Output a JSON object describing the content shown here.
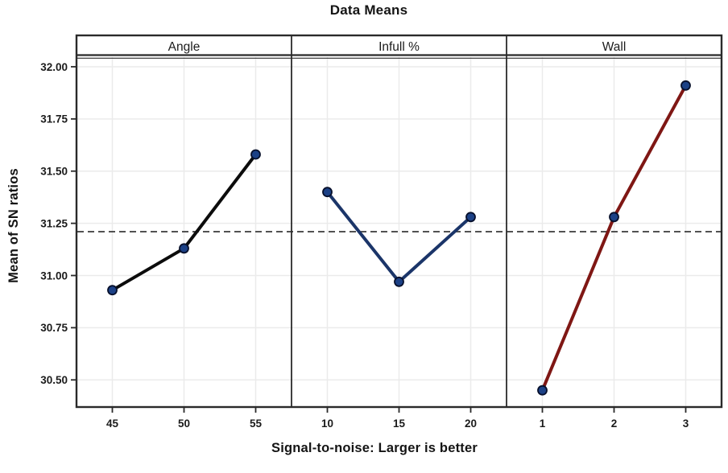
{
  "chart_data": {
    "type": "line",
    "title": "Data Means",
    "xlabel": "Signal-to-noise: Larger is better",
    "ylabel": "Mean of SN ratios",
    "ylim": [
      30.37,
      32.05
    ],
    "yticks": [
      32.0,
      31.75,
      31.5,
      31.25,
      31.0,
      30.75,
      30.5
    ],
    "reference_line": 31.21,
    "grid": true,
    "legend_position": "none",
    "panels": [
      {
        "label": "Angle",
        "categories": [
          "45",
          "50",
          "55"
        ],
        "values": [
          30.93,
          31.13,
          31.58
        ],
        "line_color": "#0c0c0c"
      },
      {
        "label": "Infull %",
        "categories": [
          "10",
          "15",
          "20"
        ],
        "values": [
          31.4,
          30.97,
          31.28
        ],
        "line_color": "#1b3569"
      },
      {
        "label": "Wall",
        "categories": [
          "1",
          "2",
          "3"
        ],
        "values": [
          30.45,
          31.28,
          31.91
        ],
        "line_color": "#7f1714"
      }
    ],
    "marker": {
      "fill": "#1c4186",
      "stroke": "#07102c",
      "radius": 5.5
    },
    "styles": {
      "grid_color": "#ebebeb",
      "frame_color": "#2a2a2a",
      "reference_color": "#3a3a3a",
      "tick_color": "#2a2a2a",
      "text_color": "#1b1b1b",
      "background": "#ffffff"
    }
  }
}
